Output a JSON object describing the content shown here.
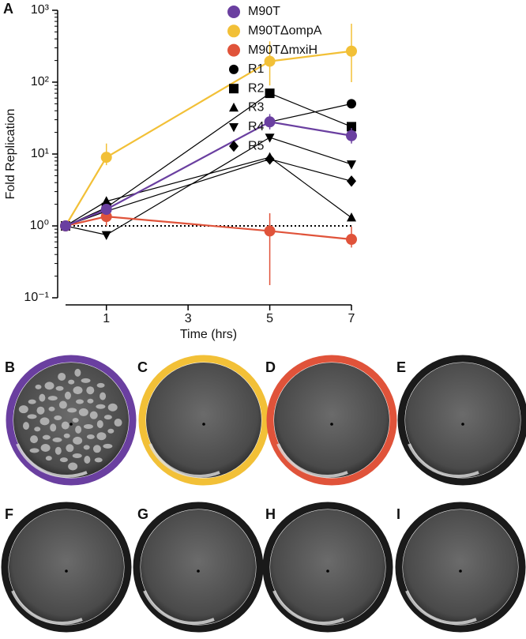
{
  "chart_data": {
    "type": "line",
    "panel_label": "A",
    "x_label": "Time (hrs)",
    "y_label": "Fold Replication",
    "log_y": true,
    "xlim": [
      0,
      7
    ],
    "xticks": [
      1,
      3,
      5,
      7
    ],
    "ylim": [
      0.1,
      1000
    ],
    "yticks": [
      {
        "value": 0.1,
        "label": "10⁻¹"
      },
      {
        "value": 1,
        "label": "10⁰"
      },
      {
        "value": 10,
        "label": "10¹"
      },
      {
        "value": 100,
        "label": "10²"
      },
      {
        "value": 1000,
        "label": "10³"
      }
    ],
    "reference_line": 1,
    "x": [
      0,
      1,
      5,
      7
    ],
    "series": [
      {
        "name": "M90T",
        "color": "#6a3fa0",
        "marker": "circle",
        "values": [
          1,
          1.7,
          28,
          18
        ],
        "lower": [
          null,
          1.5,
          22,
          14
        ],
        "upper": [
          null,
          2.0,
          36,
          23
        ]
      },
      {
        "name": "M90TΔompA",
        "color": "#f2c037",
        "marker": "circle",
        "values": [
          1,
          9,
          195,
          270
        ],
        "lower": [
          null,
          7,
          90,
          100
        ],
        "upper": [
          null,
          14,
          370,
          650
        ]
      },
      {
        "name": "M90TΔmxiH",
        "color": "#e0533a",
        "marker": "circle",
        "values": [
          1,
          1.35,
          0.85,
          0.65
        ],
        "lower": [
          null,
          1.0,
          0.15,
          0.5
        ],
        "upper": [
          null,
          1.7,
          1.5,
          0.98
        ]
      },
      {
        "name": "R1",
        "color": "#000000",
        "marker": "circle",
        "values": [
          1,
          1.7,
          28,
          50
        ]
      },
      {
        "name": "R2",
        "color": "#000000",
        "marker": "square",
        "values": [
          1,
          1.8,
          70,
          24
        ]
      },
      {
        "name": "R3",
        "color": "#000000",
        "marker": "triangle-up",
        "values": [
          1,
          2.2,
          9,
          1.3
        ]
      },
      {
        "name": "R4",
        "color": "#000000",
        "marker": "triangle-down",
        "values": [
          1,
          0.75,
          17,
          7.2
        ]
      },
      {
        "name": "R5",
        "color": "#000000",
        "marker": "diamond",
        "values": [
          1,
          1.6,
          8.5,
          4.2
        ]
      }
    ]
  },
  "plates": [
    {
      "label": "B",
      "ring": "#6a3fa0",
      "plaques": true
    },
    {
      "label": "C",
      "ring": "#f2c037",
      "plaques": false
    },
    {
      "label": "D",
      "ring": "#e0533a",
      "plaques": false
    },
    {
      "label": "E",
      "ring": "#1a1a1a",
      "plaques": false
    },
    {
      "label": "F",
      "ring": "#1a1a1a",
      "plaques": false
    },
    {
      "label": "G",
      "ring": "#1a1a1a",
      "plaques": false
    },
    {
      "label": "H",
      "ring": "#1a1a1a",
      "plaques": false
    },
    {
      "label": "I",
      "ring": "#1a1a1a",
      "plaques": false
    }
  ]
}
